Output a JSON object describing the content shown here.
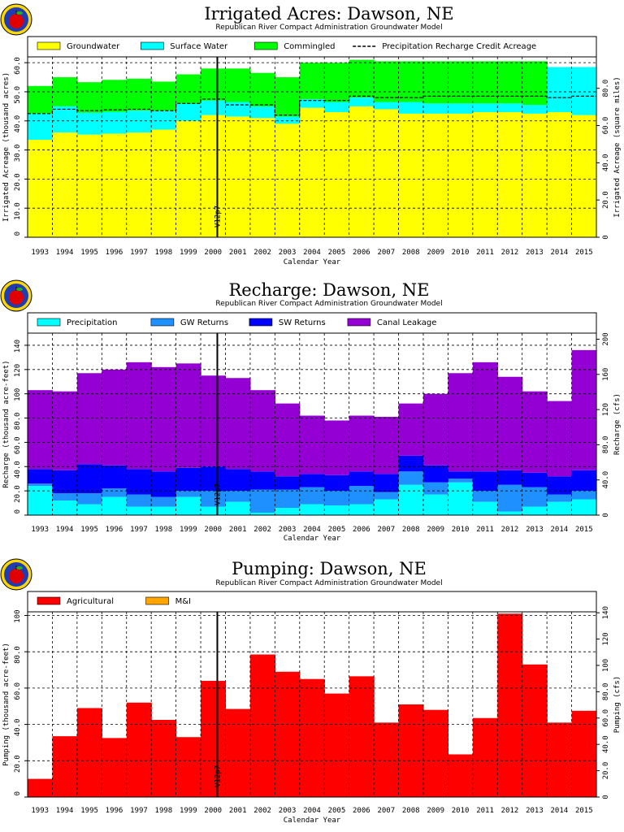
{
  "years": [
    "1993",
    "1994",
    "1995",
    "1996",
    "1997",
    "1998",
    "1999",
    "2000",
    "2001",
    "2002",
    "2003",
    "2004",
    "2005",
    "2006",
    "2007",
    "2008",
    "2009",
    "2010",
    "2011",
    "2012",
    "2013",
    "2014",
    "2015"
  ],
  "colors": {
    "yellow": "#ffff00",
    "cyan": "#00ffff",
    "green": "#00ff00",
    "lightblue": "#1e90ff",
    "blue": "#0000ff",
    "purple": "#9400d3",
    "red": "#ff0000",
    "orange": "#ffa500"
  },
  "chart_data": [
    {
      "type": "area",
      "title": "Irrigated Acres: Dawson, NE",
      "subtitle": "Republican River Compact Administration Groundwater Model",
      "xlabel": "Calendar Year",
      "ylabel": "Irrigated Acreage (thousand acres)",
      "y2label": "Irrigated Acreage (square miles)",
      "ylim": [
        0,
        62
      ],
      "yticks": [
        "0",
        "10.0",
        "20.0",
        "30.0",
        "40.0",
        "50.0",
        "60.0"
      ],
      "y2ticks": [
        "0",
        "20.0",
        "40.0",
        "60.0",
        "80.0"
      ],
      "y2ticks_values": [
        0,
        12.8,
        25.6,
        38.4,
        51.2
      ],
      "marker_label": "V12p7",
      "series": [
        {
          "name": "Groundwater",
          "color": "#ffff00",
          "values": [
            33.5,
            36.0,
            35.3,
            35.6,
            36.0,
            37.0,
            40.0,
            42.0,
            41.5,
            41.0,
            39.0,
            44.5,
            43.0,
            45.0,
            44.0,
            42.5,
            42.5,
            42.5,
            43.0,
            43.0,
            42.5,
            43.0,
            42.0
          ]
        },
        {
          "name": "Surface Water",
          "color": "#00ffff",
          "values": [
            9.0,
            9.0,
            7.5,
            7.5,
            7.5,
            6.5,
            6.0,
            5.0,
            5.0,
            4.0,
            2.5,
            3.0,
            3.5,
            3.0,
            2.5,
            4.0,
            3.5,
            3.5,
            3.0,
            3.0,
            3.0,
            15.5,
            16.5
          ]
        },
        {
          "name": "Commingled",
          "color": "#00ff00",
          "values": [
            9.5,
            10.0,
            10.5,
            11.0,
            11.0,
            10.0,
            10.0,
            11.0,
            11.5,
            11.5,
            13.5,
            12.5,
            13.5,
            13.0,
            14.0,
            14.0,
            14.5,
            14.5,
            14.5,
            14.5,
            15.0,
            0,
            0
          ]
        }
      ],
      "precipitation_credit": {
        "name": "Precipitation Recharge Credit Acreage",
        "values": [
          42.5,
          44.0,
          43.5,
          43.8,
          44.0,
          43.5,
          46.0,
          47.5,
          45.5,
          45.5,
          42.0,
          47.0,
          47.0,
          48.5,
          48.0,
          48.0,
          48.5,
          48.5,
          48.5,
          48.5,
          48.5,
          48.0,
          48.5
        ]
      }
    },
    {
      "type": "area",
      "title": "Recharge: Dawson, NE",
      "subtitle": "Republican River Compact Administration Groundwater Model",
      "xlabel": "Calendar Year",
      "ylabel": "Recharge (thousand acre-feet)",
      "y2label": "Recharge (cfs)",
      "ylim": [
        0,
        150
      ],
      "yticks": [
        "0",
        "20.0",
        "40.0",
        "60.0",
        "80.0",
        "100",
        "120",
        "140"
      ],
      "y2ticks": [
        "0",
        "40.0",
        "80.0",
        "120",
        "160",
        "200"
      ],
      "y2ticks_values": [
        0,
        29,
        58,
        87,
        116,
        145
      ],
      "marker_label": "V12p7",
      "series": [
        {
          "name": "Precipitation",
          "color": "#00ffff",
          "values": [
            24,
            12,
            9,
            15,
            7,
            7,
            15,
            7,
            11,
            2,
            6,
            9,
            8,
            9,
            13,
            25,
            17,
            27,
            11,
            3,
            7,
            11,
            13
          ]
        },
        {
          "name": "GW Returns",
          "color": "#1e90ff",
          "values": [
            2,
            6,
            9,
            7,
            10,
            8,
            5,
            13,
            9,
            19,
            15,
            14,
            12,
            15,
            6,
            11,
            10,
            3,
            9,
            22,
            16,
            6,
            7
          ]
        },
        {
          "name": "SW Returns",
          "color": "#0000ff",
          "values": [
            12,
            19,
            24,
            19,
            21,
            21,
            19,
            20,
            18,
            15,
            11,
            11,
            13,
            12,
            15,
            13,
            14,
            6,
            16,
            12,
            12,
            15,
            17
          ]
        },
        {
          "name": "Canal Leakage",
          "color": "#9400d3",
          "values": [
            65,
            65,
            75,
            79,
            88,
            86,
            86,
            75,
            75,
            67,
            60,
            48,
            45,
            46,
            47,
            43,
            59,
            81,
            90,
            77,
            67,
            62,
            99
          ]
        }
      ]
    },
    {
      "type": "bar",
      "title": "Pumping: Dawson, NE",
      "subtitle": "Republican River Compact Administration Groundwater Model",
      "xlabel": "Calendar Year",
      "ylabel": "Pumping (thousand acre-feet)",
      "y2label": "Pumping (cfs)",
      "ylim": [
        0,
        102
      ],
      "yticks": [
        "0",
        "20.0",
        "40.0",
        "60.0",
        "80.0",
        "100"
      ],
      "y2ticks": [
        "0",
        "20.0",
        "40.0",
        "60.0",
        "80.0",
        "100",
        "120",
        "140"
      ],
      "y2ticks_values": [
        0,
        14.5,
        29,
        43.5,
        58,
        72.5,
        87,
        101.5
      ],
      "marker_label": "V12p7",
      "series": [
        {
          "name": "Agricultural",
          "color": "#ff0000",
          "values": [
            10,
            33.5,
            49,
            32.5,
            52,
            42.5,
            33,
            64,
            48.5,
            78.5,
            69,
            65,
            57,
            66.5,
            41,
            51,
            48,
            23.5,
            43.5,
            101,
            73,
            41,
            47.5
          ]
        },
        {
          "name": "M&I",
          "color": "#ffa500",
          "values": [
            0,
            0,
            0,
            0,
            0,
            0,
            0,
            0,
            0,
            0,
            0,
            0,
            0,
            0,
            0,
            0,
            0,
            0,
            0,
            0,
            0,
            0,
            0
          ]
        }
      ]
    }
  ]
}
